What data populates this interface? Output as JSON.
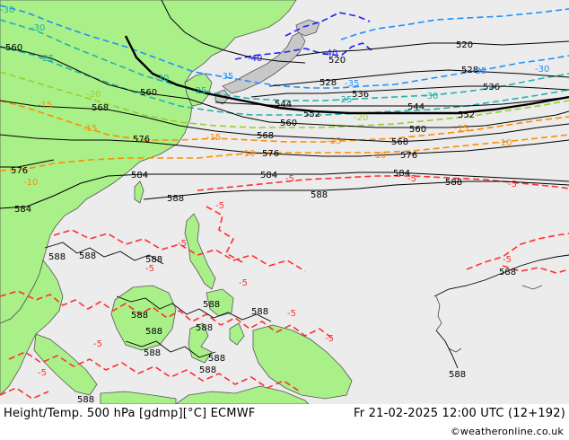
{
  "footer": {
    "left": "Height/Temp. 500 hPa [gdmp][°C] ECMWF",
    "right": "Fr 21-02-2025 12:00 UTC (12+192)",
    "credit": "©weatheronline.co.uk"
  },
  "colors": {
    "ocean": "#ececec",
    "land_warm": "#aaf088",
    "land_other": "#c8c8c8",
    "height_contour": "#000000",
    "temp_minus5": "#ff3030",
    "temp_minus10_15": "#ff8c00",
    "temp_minus20": "#9acd32",
    "temp_minus25_30": "#20b2aa",
    "temp_minus35": "#1e90ff",
    "temp_minus40": "#2020ff"
  },
  "labels": {
    "h560_a": "560",
    "h520_a": "520",
    "h520_b": "520",
    "h528_a": "528",
    "h528_b": "528",
    "h536_a": "536",
    "h536_b": "536",
    "h544_a": "544",
    "h544_b": "544",
    "h552_a": "552",
    "h552_b": "552",
    "h560_b": "560",
    "h560_c": "560",
    "h560_d": "560",
    "h568_a": "568",
    "h568_b": "568",
    "h568_c": "568",
    "h576_a": "576",
    "h576_b": "576",
    "h576_c": "576",
    "h576_d": "576",
    "h584_a": "584",
    "h584_b": "584",
    "h584_c": "584",
    "h584_d": "584",
    "h588_a": "588",
    "h588_b": "588",
    "h588_c": "588",
    "h588_d": "588",
    "h588_e": "588",
    "h588_f": "588",
    "h588_g": "588",
    "h588_h": "588",
    "h588_i": "588",
    "h588_j": "588",
    "h588_k": "588",
    "h588_l": "588",
    "h588_m": "588",
    "h588_n": "588",
    "h588_o": "588",
    "h588_p": "588",
    "h588_q": "588",
    "t30_a": "-30",
    "t30_b": "-30",
    "t30_c": "-30",
    "t30_d": "-30",
    "t30_e": "-30",
    "t25_a": "-25",
    "t25_b": "-25",
    "t25_c": "-25",
    "t35_a": "-35",
    "t35_b": "-35",
    "t35_c": "-35",
    "t40_a": "-40",
    "t40_b": "-40",
    "t20_a": "-20",
    "t20_b": "-20",
    "t15_a": "-15",
    "t15_b": "-15",
    "t15_c": "-15",
    "t15_d": "-15",
    "t15_e": "-15",
    "t10_a": "-10",
    "t10_b": "-10",
    "t10_c": "-10",
    "t10_d": "-10",
    "t5_a": "-5",
    "t5_b": "-5",
    "t5_c": "-5",
    "t5_d": "-5",
    "t5_e": "-5",
    "t5_f": "-5",
    "t5_g": "-5",
    "t5_h": "-5",
    "t5_i": "-5",
    "t5_j": "-5",
    "t5_k": "-5",
    "t5_l": "-5"
  }
}
